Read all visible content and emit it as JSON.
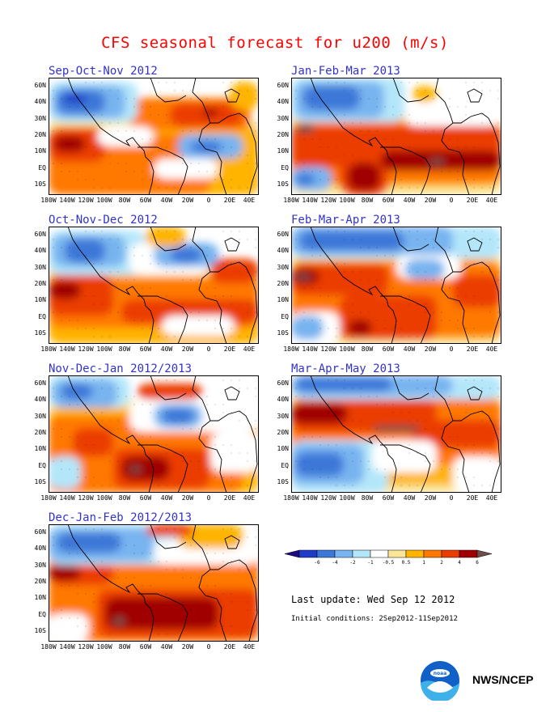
{
  "title": "CFS seasonal forecast for u200 (m/s)",
  "y_labels": [
    "60N",
    "40N",
    "30N",
    "20N",
    "10N",
    "EQ",
    "10S"
  ],
  "x_labels": [
    "180W",
    "140W",
    "120W",
    "100W",
    "80W",
    "60W",
    "40W",
    "20W",
    "0",
    "20E",
    "40E"
  ],
  "panels": [
    {
      "id": "son",
      "title": "Sep-Oct-Nov 2012"
    },
    {
      "id": "jfm",
      "title": "Jan-Feb-Mar 2013"
    },
    {
      "id": "ond",
      "title": "Oct-Nov-Dec 2012"
    },
    {
      "id": "fma",
      "title": "Feb-Mar-Apr 2013"
    },
    {
      "id": "ndj",
      "title": "Nov-Dec-Jan 2012/2013"
    },
    {
      "id": "mam",
      "title": "Mar-Apr-May 2013"
    },
    {
      "id": "djf",
      "title": "Dec-Jan-Feb 2012/2013"
    }
  ],
  "legend": {
    "labels": [
      "-6",
      "-4",
      "-2",
      "-1",
      "-0.5",
      "0.5",
      "1",
      "2",
      "4",
      "6"
    ],
    "colors": [
      "#1e0a82",
      "#1e3cc8",
      "#3c78d8",
      "#78b4f0",
      "#b4e6fa",
      "#ffffff",
      "#fae696",
      "#ffb400",
      "#ff7800",
      "#eb3c00",
      "#a00000",
      "#6e504b"
    ]
  },
  "last_update": "Last update: Wed Sep 12 2012",
  "initial_conditions": "Initial conditions: 2Sep2012-11Sep2012",
  "brand": "NWS/NCEP"
}
